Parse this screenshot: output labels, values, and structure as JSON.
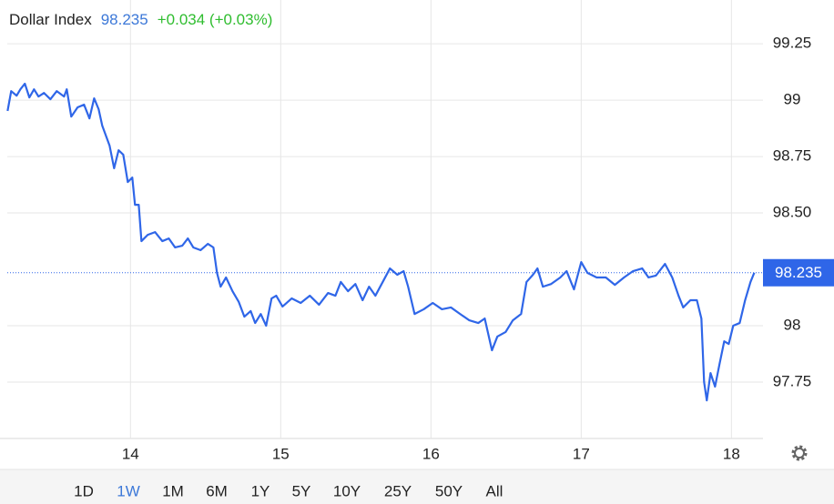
{
  "chart_data": {
    "type": "line",
    "title": "Dollar Index",
    "last_value": 98.235,
    "change_label": "+0.034 (+0.03%)",
    "color": "#2f66e8",
    "title_color": "#222222",
    "value_color": "#3c78d8",
    "change_color": "#2fbd2f",
    "grid": true,
    "x": [
      13.182,
      13.206,
      13.242,
      13.267,
      13.297,
      13.327,
      13.358,
      13.388,
      13.424,
      13.467,
      13.509,
      13.558,
      13.576,
      13.606,
      13.648,
      13.691,
      13.727,
      13.758,
      13.788,
      13.812,
      13.861,
      13.891,
      13.921,
      13.952,
      13.982,
      14.012,
      14.03,
      14.055,
      14.073,
      14.115,
      14.164,
      14.212,
      14.255,
      14.297,
      14.345,
      14.382,
      14.418,
      14.467,
      14.515,
      14.552,
      14.576,
      14.6,
      14.636,
      14.679,
      14.721,
      14.758,
      14.8,
      14.83,
      14.867,
      14.903,
      14.939,
      14.97,
      15.012,
      15.073,
      15.133,
      15.194,
      15.255,
      15.315,
      15.364,
      15.4,
      15.448,
      15.497,
      15.545,
      15.588,
      15.63,
      15.679,
      15.727,
      15.776,
      15.818,
      15.848,
      15.891,
      15.952,
      16.012,
      16.073,
      16.133,
      16.194,
      16.255,
      16.315,
      16.358,
      16.406,
      16.442,
      16.497,
      16.545,
      16.6,
      16.636,
      16.679,
      16.709,
      16.745,
      16.8,
      16.861,
      16.903,
      16.952,
      17.0,
      17.042,
      17.103,
      17.164,
      17.224,
      17.285,
      17.345,
      17.406,
      17.448,
      17.497,
      17.558,
      17.606,
      17.648,
      17.679,
      17.727,
      17.77,
      17.8,
      17.818,
      17.836,
      17.861,
      17.891,
      17.921,
      17.952,
      17.982,
      18.012,
      18.055,
      18.091,
      18.127,
      18.152
    ],
    "values": [
      98.952,
      99.04,
      99.02,
      99.048,
      99.073,
      99.012,
      99.048,
      99.016,
      99.032,
      99.004,
      99.04,
      99.016,
      99.048,
      98.927,
      98.968,
      98.98,
      98.919,
      99.008,
      98.96,
      98.887,
      98.798,
      98.698,
      98.778,
      98.758,
      98.637,
      98.657,
      98.536,
      98.536,
      98.375,
      98.403,
      98.415,
      98.375,
      98.387,
      98.347,
      98.355,
      98.387,
      98.347,
      98.335,
      98.363,
      98.347,
      98.234,
      98.173,
      98.214,
      98.153,
      98.105,
      98.04,
      98.065,
      98.012,
      98.052,
      98.0,
      98.121,
      98.133,
      98.085,
      98.121,
      98.101,
      98.133,
      98.093,
      98.145,
      98.133,
      98.194,
      98.153,
      98.185,
      98.113,
      98.173,
      98.133,
      98.194,
      98.254,
      98.226,
      98.242,
      98.173,
      98.052,
      98.073,
      98.101,
      98.073,
      98.081,
      98.052,
      98.024,
      98.012,
      98.032,
      97.891,
      97.952,
      97.972,
      98.024,
      98.052,
      98.194,
      98.226,
      98.254,
      98.173,
      98.185,
      98.214,
      98.242,
      98.161,
      98.282,
      98.234,
      98.214,
      98.214,
      98.181,
      98.214,
      98.242,
      98.254,
      98.214,
      98.222,
      98.274,
      98.214,
      98.133,
      98.081,
      98.113,
      98.113,
      98.032,
      97.75,
      97.669,
      97.79,
      97.73,
      97.831,
      97.931,
      97.919,
      98.0,
      98.012,
      98.113,
      98.194,
      98.235
    ],
    "xlim": [
      13.18,
      18.21
    ],
    "xticks": [
      14,
      15,
      16,
      17,
      18
    ],
    "ylim": [
      97.5,
      99.444
    ],
    "yticks": [
      99.25,
      99,
      98.75,
      {
        "value": 98.5,
        "label": "98.50"
      },
      98,
      97.75
    ],
    "ranges": [
      "1D",
      "1W",
      "1M",
      "6M",
      "1Y",
      "5Y",
      "10Y",
      "25Y",
      "50Y",
      "All"
    ],
    "active_range": 1
  }
}
